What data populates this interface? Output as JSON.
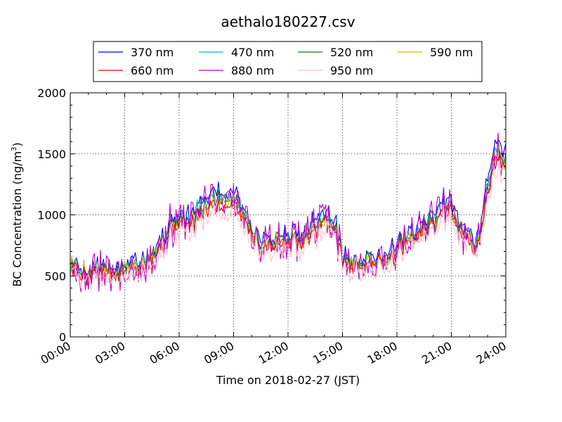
{
  "chart_data": {
    "type": "line",
    "title": "aethalo180227.csv",
    "xlabel": "Time on 2018-02-27 (JST)",
    "ylabel_main": "BC Concentration (ng/m",
    "ylabel_sup": "3",
    "ylabel_tail": ")",
    "xlim": [
      0,
      24
    ],
    "ylim": [
      0,
      2000
    ],
    "x_ticks": [
      0,
      3,
      6,
      9,
      12,
      15,
      18,
      21,
      24
    ],
    "x_tick_labels": [
      "00:00",
      "03:00",
      "06:00",
      "09:00",
      "12:00",
      "15:00",
      "18:00",
      "21:00",
      "24:00"
    ],
    "y_ticks": [
      0,
      500,
      1000,
      1500,
      2000
    ],
    "y_tick_labels": [
      "0",
      "500",
      "1000",
      "1500",
      "2000"
    ],
    "grid": true,
    "grid_style": "dotted",
    "legend_placement": "top-center",
    "legend_columns": 4,
    "sampling_interval_hours": 0.0833,
    "base_profile": {
      "hours": [
        0,
        0.5,
        1,
        1.5,
        2,
        2.5,
        3,
        3.5,
        4,
        4.5,
        5,
        5.5,
        6,
        6.5,
        7,
        7.5,
        8,
        8.5,
        9,
        9.5,
        10,
        10.5,
        11,
        11.5,
        12,
        12.5,
        13,
        13.5,
        14,
        14.5,
        15,
        15.5,
        16,
        16.5,
        17,
        17.5,
        18,
        18.5,
        19,
        19.5,
        20,
        20.5,
        21,
        21.5,
        22,
        22.5,
        23,
        23.5,
        24
      ],
      "values": [
        600,
        550,
        520,
        560,
        540,
        520,
        560,
        600,
        620,
        680,
        760,
        900,
        960,
        930,
        1000,
        1080,
        1130,
        1110,
        1150,
        1020,
        870,
        780,
        760,
        790,
        810,
        800,
        830,
        910,
        950,
        950,
        640,
        600,
        600,
        620,
        630,
        660,
        720,
        790,
        810,
        900,
        950,
        1050,
        1080,
        900,
        800,
        740,
        1250,
        1500,
        1450
      ]
    },
    "series": [
      {
        "name": "370 nm",
        "color": "#0000ff",
        "scale": 1.06,
        "noise": 45,
        "seed": 11
      },
      {
        "name": "470 nm",
        "color": "#00bfbf",
        "scale": 1.02,
        "noise": 45,
        "seed": 23
      },
      {
        "name": "520 nm",
        "color": "#008000",
        "scale": 1.0,
        "noise": 45,
        "seed": 37
      },
      {
        "name": "590 nm",
        "color": "#bfbf00",
        "scale": 0.99,
        "noise": 50,
        "seed": 41
      },
      {
        "name": "660 nm",
        "color": "#ff0000",
        "scale": 0.97,
        "noise": 50,
        "seed": 53
      },
      {
        "name": "880 nm",
        "color": "#bf00bf",
        "scale": 1.0,
        "noise": 150,
        "seed": 67
      },
      {
        "name": "950 nm",
        "color": "#ffc0cb",
        "scale": 0.91,
        "noise": 70,
        "seed": 79
      }
    ]
  }
}
